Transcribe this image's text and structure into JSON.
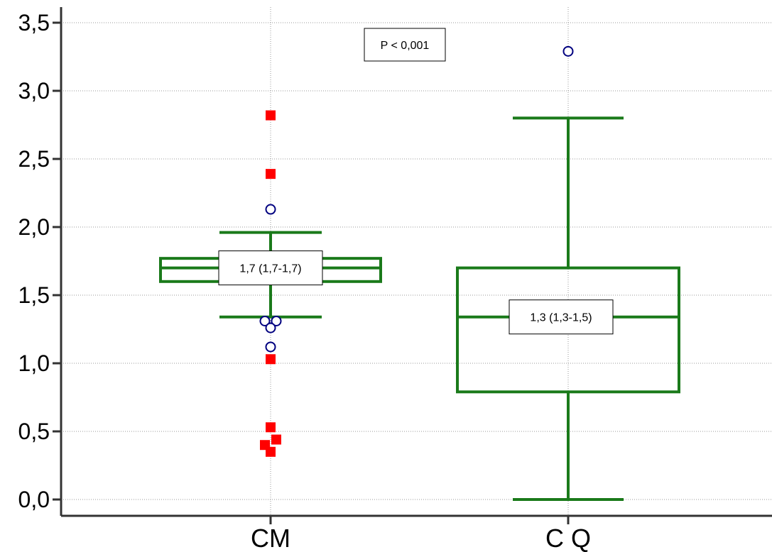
{
  "chart_data": {
    "type": "box",
    "ylim": [
      0,
      3.5
    ],
    "yticks": [
      "0,0",
      "0,5",
      "1,0",
      "1,5",
      "2,0",
      "2,5",
      "3,0",
      "3,5"
    ],
    "grid": true,
    "categories": [
      "CM",
      "C Q"
    ],
    "boxes": [
      {
        "category": "CM",
        "whisker_low": 1.34,
        "q1": 1.6,
        "median": 1.7,
        "q3": 1.77,
        "whisker_high": 1.96,
        "label": "1,7 (1,7-1,7)",
        "outliers_circle": [
          2.13,
          1.31,
          1.31,
          1.26,
          1.12
        ],
        "outliers_square": [
          2.82,
          2.39,
          1.03,
          0.53,
          0.44,
          0.4,
          0.35
        ]
      },
      {
        "category": "C Q",
        "whisker_low": 0.0,
        "q1": 0.79,
        "median": 1.34,
        "q3": 1.7,
        "whisker_high": 2.8,
        "label": "1,3 (1,3-1,5)",
        "outliers_circle": [
          3.29
        ],
        "outliers_square": []
      }
    ],
    "annotation": "P < 0,001",
    "colors": {
      "box": "#1a7a1a",
      "circle": "#000080",
      "square": "#ff0000"
    }
  }
}
